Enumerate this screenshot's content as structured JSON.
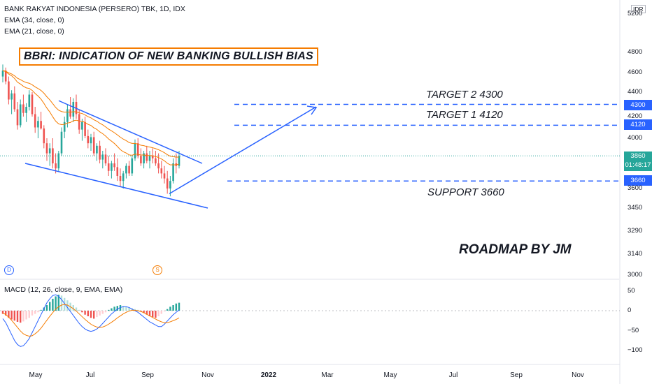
{
  "legend": {
    "symbol": "BANK RAKYAT INDONESIA (PERSERO) TBK, 1D, IDX",
    "ema1": "EMA (34, close, 0)",
    "ema2": "EMA (21, close, 0)",
    "macd": "MACD (12, 26, close, 9, EMA, EMA)"
  },
  "currency": "IDR",
  "annotations": {
    "title": "BBRI: INDICATION OF NEW BANKING BULLISH BIAS",
    "target2": "TARGET 2  4300",
    "target1": "TARGET 1  4120",
    "support": "SUPPORT 3660",
    "roadmap": "ROADMAP BY JM"
  },
  "price_tags": {
    "target2": "4300",
    "target1": "4120",
    "current": "3860",
    "countdown": "01:48:17",
    "support": "3660"
  },
  "markers": {
    "dividend": "D",
    "split": "S"
  },
  "colors": {
    "up": "#26a69a",
    "down": "#ef5350",
    "ema": "#f57c00",
    "trend": "#2962ff",
    "level": "#2962ff",
    "frame": "#f57c00"
  },
  "chart_data": {
    "type": "candlestick",
    "price_axis": {
      "ticks": [
        3000,
        3140,
        3290,
        3450,
        3600,
        4000,
        4200,
        4400,
        4600,
        4800,
        5200
      ],
      "tick_labels": [
        "3000",
        "3140",
        "3290",
        "3450",
        "3600",
        "4000",
        "4200",
        "4400",
        "4600",
        "4800",
        "5200"
      ]
    },
    "macd_axis": {
      "ticks": [
        50,
        0,
        -50,
        -100
      ],
      "tick_labels": [
        "50",
        "0",
        "−50",
        "−100"
      ]
    },
    "x_labels": [
      "May",
      "Jul",
      "Sep",
      "Nov",
      "2022",
      "Mar",
      "May",
      "Jul",
      "Sep",
      "Nov"
    ],
    "levels": [
      {
        "name": "TARGET 2",
        "value": 4300
      },
      {
        "name": "TARGET 1",
        "value": 4120
      },
      {
        "name": "SUPPORT",
        "value": 3660
      }
    ],
    "last_price": 3860,
    "candles": [
      [
        4560,
        4680,
        4500,
        4620
      ],
      [
        4620,
        4650,
        4480,
        4510
      ],
      [
        4510,
        4560,
        4300,
        4340
      ],
      [
        4340,
        4420,
        4220,
        4390
      ],
      [
        4390,
        4460,
        4240,
        4260
      ],
      [
        4260,
        4320,
        4080,
        4120
      ],
      [
        4120,
        4340,
        4100,
        4300
      ],
      [
        4300,
        4380,
        4200,
        4230
      ],
      [
        4230,
        4310,
        4150,
        4280
      ],
      [
        4280,
        4420,
        4250,
        4380
      ],
      [
        4380,
        4400,
        4200,
        4220
      ],
      [
        4220,
        4280,
        4050,
        4100
      ],
      [
        4100,
        4200,
        4000,
        4160
      ],
      [
        4160,
        4240,
        4080,
        4090
      ],
      [
        4090,
        4120,
        3920,
        3960
      ],
      [
        3960,
        4000,
        3820,
        3880
      ],
      [
        3880,
        3960,
        3780,
        3920
      ],
      [
        3920,
        4000,
        3760,
        3800
      ],
      [
        3800,
        3880,
        3720,
        3760
      ],
      [
        3760,
        3900,
        3740,
        3880
      ],
      [
        3880,
        4100,
        3860,
        4060
      ],
      [
        4060,
        4200,
        4000,
        4150
      ],
      [
        4150,
        4300,
        4100,
        4260
      ],
      [
        4260,
        4360,
        4180,
        4200
      ],
      [
        4200,
        4350,
        4150,
        4320
      ],
      [
        4320,
        4380,
        4180,
        4220
      ],
      [
        4220,
        4260,
        4040,
        4080
      ],
      [
        4080,
        4180,
        3980,
        4150
      ],
      [
        4150,
        4200,
        4000,
        4020
      ],
      [
        4020,
        4080,
        3920,
        3960
      ],
      [
        3960,
        4040,
        3900,
        4010
      ],
      [
        4010,
        4060,
        3860,
        3880
      ],
      [
        3880,
        3960,
        3820,
        3940
      ],
      [
        3940,
        3980,
        3800,
        3830
      ],
      [
        3830,
        3900,
        3760,
        3870
      ],
      [
        3870,
        3920,
        3780,
        3800
      ],
      [
        3800,
        3860,
        3700,
        3740
      ],
      [
        3740,
        3820,
        3680,
        3800
      ],
      [
        3800,
        3880,
        3740,
        3770
      ],
      [
        3770,
        3840,
        3660,
        3700
      ],
      [
        3700,
        3760,
        3620,
        3660
      ],
      [
        3660,
        3740,
        3600,
        3720
      ],
      [
        3720,
        3800,
        3680,
        3780
      ],
      [
        3780,
        3820,
        3700,
        3720
      ],
      [
        3720,
        3860,
        3700,
        3840
      ],
      [
        3840,
        3990,
        3820,
        3960
      ],
      [
        3960,
        4000,
        3840,
        3860
      ],
      [
        3860,
        3920,
        3780,
        3800
      ],
      [
        3800,
        3900,
        3760,
        3880
      ],
      [
        3880,
        3940,
        3800,
        3820
      ],
      [
        3820,
        3900,
        3760,
        3860
      ],
      [
        3860,
        3920,
        3800,
        3840
      ],
      [
        3840,
        3900,
        3780,
        3800
      ],
      [
        3800,
        3880,
        3720,
        3760
      ],
      [
        3760,
        3820,
        3680,
        3720
      ],
      [
        3720,
        3780,
        3640,
        3680
      ],
      [
        3680,
        3740,
        3560,
        3600
      ],
      [
        3600,
        3700,
        3540,
        3660
      ],
      [
        3660,
        3840,
        3640,
        3800
      ],
      [
        3800,
        3880,
        3720,
        3780
      ],
      [
        3780,
        3900,
        3760,
        3860
      ]
    ],
    "macd_hist": [
      -8,
      -12,
      -18,
      -22,
      -25,
      -28,
      -30,
      -27,
      -22,
      -18,
      -12,
      -8,
      -4,
      2,
      8,
      14,
      22,
      30,
      36,
      40,
      38,
      32,
      26,
      20,
      14,
      8,
      2,
      -4,
      -10,
      -14,
      -18,
      -20,
      -16,
      -12,
      -8,
      -4,
      2,
      6,
      10,
      12,
      14,
      12,
      10,
      8,
      6,
      4,
      2,
      -2,
      -6,
      -10,
      -14,
      -16,
      -18,
      -14,
      -8,
      -2,
      4,
      10,
      14,
      18,
      20
    ],
    "macd_line": [
      -20,
      -30,
      -45,
      -60,
      -75,
      -85,
      -90,
      -88,
      -80,
      -70,
      -55,
      -40,
      -25,
      -10,
      5,
      20,
      30,
      38,
      40,
      36,
      28,
      18,
      8,
      -2,
      -12,
      -22,
      -32,
      -40,
      -46,
      -50,
      -52,
      -50,
      -46,
      -40,
      -32,
      -24,
      -16,
      -8,
      -2,
      4,
      8,
      10,
      10,
      8,
      4,
      0,
      -4,
      -10,
      -16,
      -22,
      -28,
      -32,
      -36,
      -40,
      -40,
      -34,
      -26,
      -18,
      -10,
      -4,
      2
    ],
    "signal_line": [
      -5,
      -10,
      -16,
      -24,
      -33,
      -42,
      -51,
      -58,
      -62,
      -64,
      -63,
      -58,
      -52,
      -44,
      -34,
      -24,
      -14,
      -5,
      4,
      10,
      14,
      16,
      14,
      10,
      5,
      -1,
      -8,
      -15,
      -22,
      -28,
      -34,
      -38,
      -41,
      -42,
      -41,
      -38,
      -34,
      -29,
      -24,
      -18,
      -13,
      -8,
      -4,
      -1,
      1,
      1,
      0,
      -2,
      -5,
      -9,
      -13,
      -17,
      -21,
      -25,
      -28,
      -30,
      -30,
      -28,
      -25,
      -22,
      -18
    ]
  }
}
